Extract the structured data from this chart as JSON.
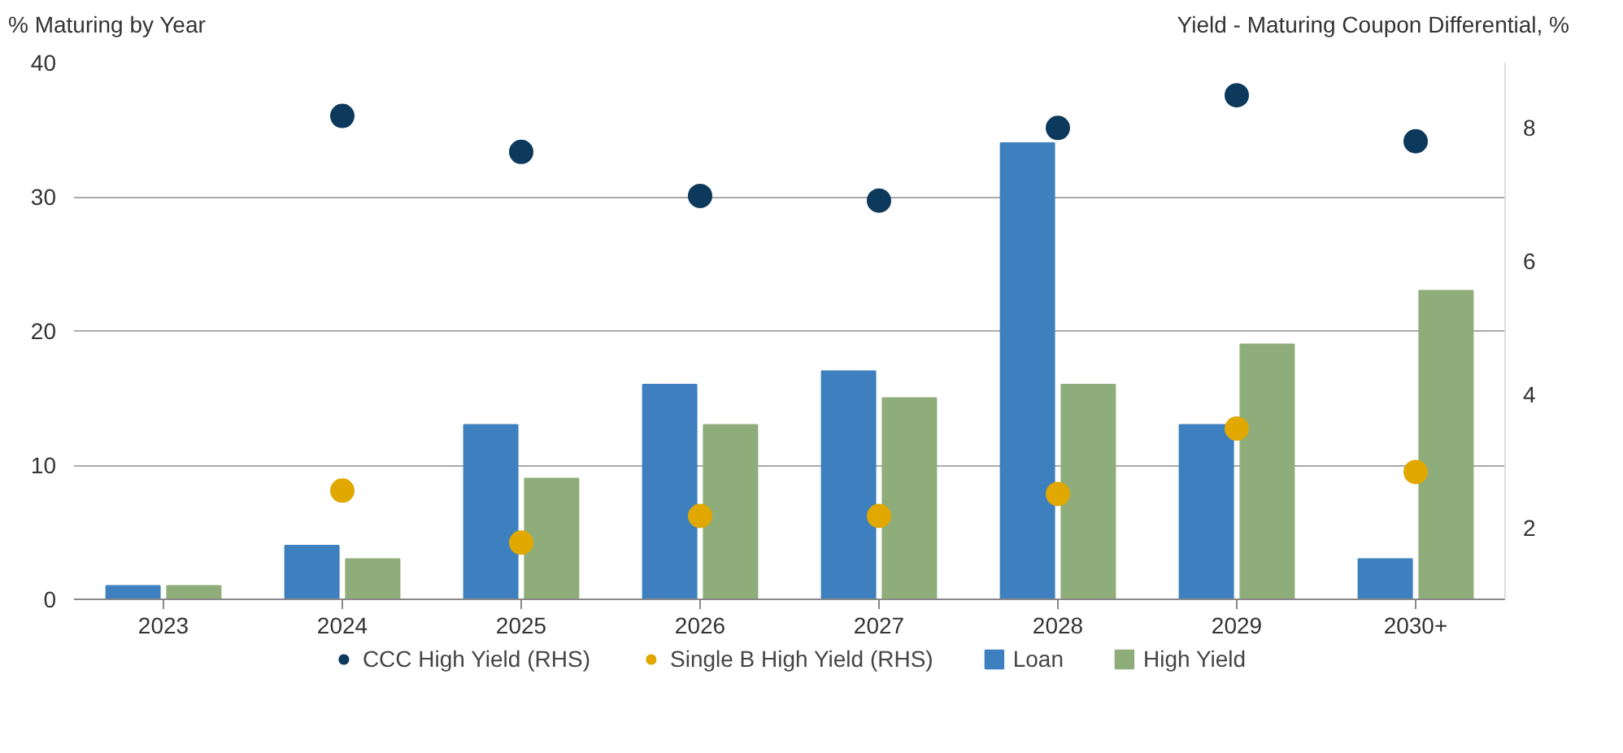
{
  "chart_data": {
    "type": "bar",
    "ylabel": "% Maturing by Year",
    "y2label": "Yield - Maturing Coupon Differential, %",
    "categories": [
      "2023",
      "2024",
      "2025",
      "2026",
      "2027",
      "2028",
      "2029",
      "2030+"
    ],
    "ylim": [
      0,
      40
    ],
    "yticks": [
      0,
      10,
      20,
      30,
      40
    ],
    "y2lim": [
      0.93,
      8.98
    ],
    "y2ticks": [
      2,
      4,
      6,
      8
    ],
    "grid": "y",
    "legend": "bottom",
    "series": [
      {
        "name": "CCC High Yield (RHS)",
        "type": "scatter",
        "axis": "y2",
        "marker": "circle",
        "color": "#0d3a5c",
        "values": [
          null,
          8.18,
          7.64,
          6.98,
          6.91,
          8.0,
          8.49,
          7.8
        ]
      },
      {
        "name": "Single B High Yield (RHS)",
        "type": "scatter",
        "axis": "y2",
        "marker": "circle",
        "color": "#e0a800",
        "values": [
          null,
          2.56,
          1.78,
          2.18,
          2.18,
          2.51,
          3.49,
          2.84
        ]
      },
      {
        "name": "Loan",
        "color": "#3e80bf",
        "values": [
          1,
          4,
          13,
          16,
          17,
          34,
          13,
          3
        ]
      },
      {
        "name": "High Yield",
        "color": "#8fad7a",
        "values": [
          1,
          3,
          9,
          13,
          15,
          16,
          19,
          23
        ]
      }
    ]
  }
}
